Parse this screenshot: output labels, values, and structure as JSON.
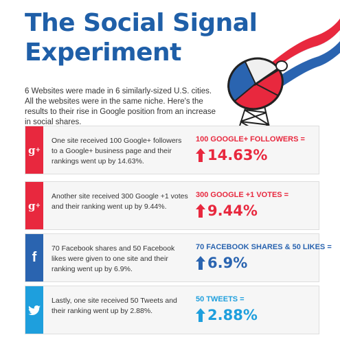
{
  "header": {
    "title_line1": "The Social Signal",
    "title_line2": "Experiment",
    "intro": "6 Websites were made in 6 similarly-sized U.S. cities.  All the websites were in the same niche.  Here's the results to their rise in Google position from an increase in social shares."
  },
  "cards": [
    {
      "icon": "google-plus-icon",
      "icon_text": "g",
      "description": "One site received 100 Google+ followers to a Google+ business page and their rankings went up by 14.63%.",
      "label": "100 GOOGLE+ FOLLOWERS =",
      "value": "14.63%",
      "color": "#e8283e"
    },
    {
      "icon": "google-plus-icon",
      "icon_text": "g",
      "description": "Another site received 300 Google +1 votes and their ranking went up by 9.44%.",
      "label": "300 GOOGLE +1 VOTES =",
      "value": "9.44%",
      "color": "#e8283e"
    },
    {
      "icon": "facebook-icon",
      "icon_text": "f",
      "description": "70 Facebook shares and 50 Facebook likes were given to one site and their ranking went up by 6.9%.",
      "label": "70 FACEBOOK SHARES & 50 LIKES =",
      "value": "6.9%",
      "color": "#2a64b0"
    },
    {
      "icon": "twitter-icon",
      "description": "Lastly, one site received 50 Tweets and their ranking went up by 2.88%.",
      "label": "50 TWEETS =",
      "value": "2.88%",
      "color": "#1e9fdd"
    }
  ]
}
